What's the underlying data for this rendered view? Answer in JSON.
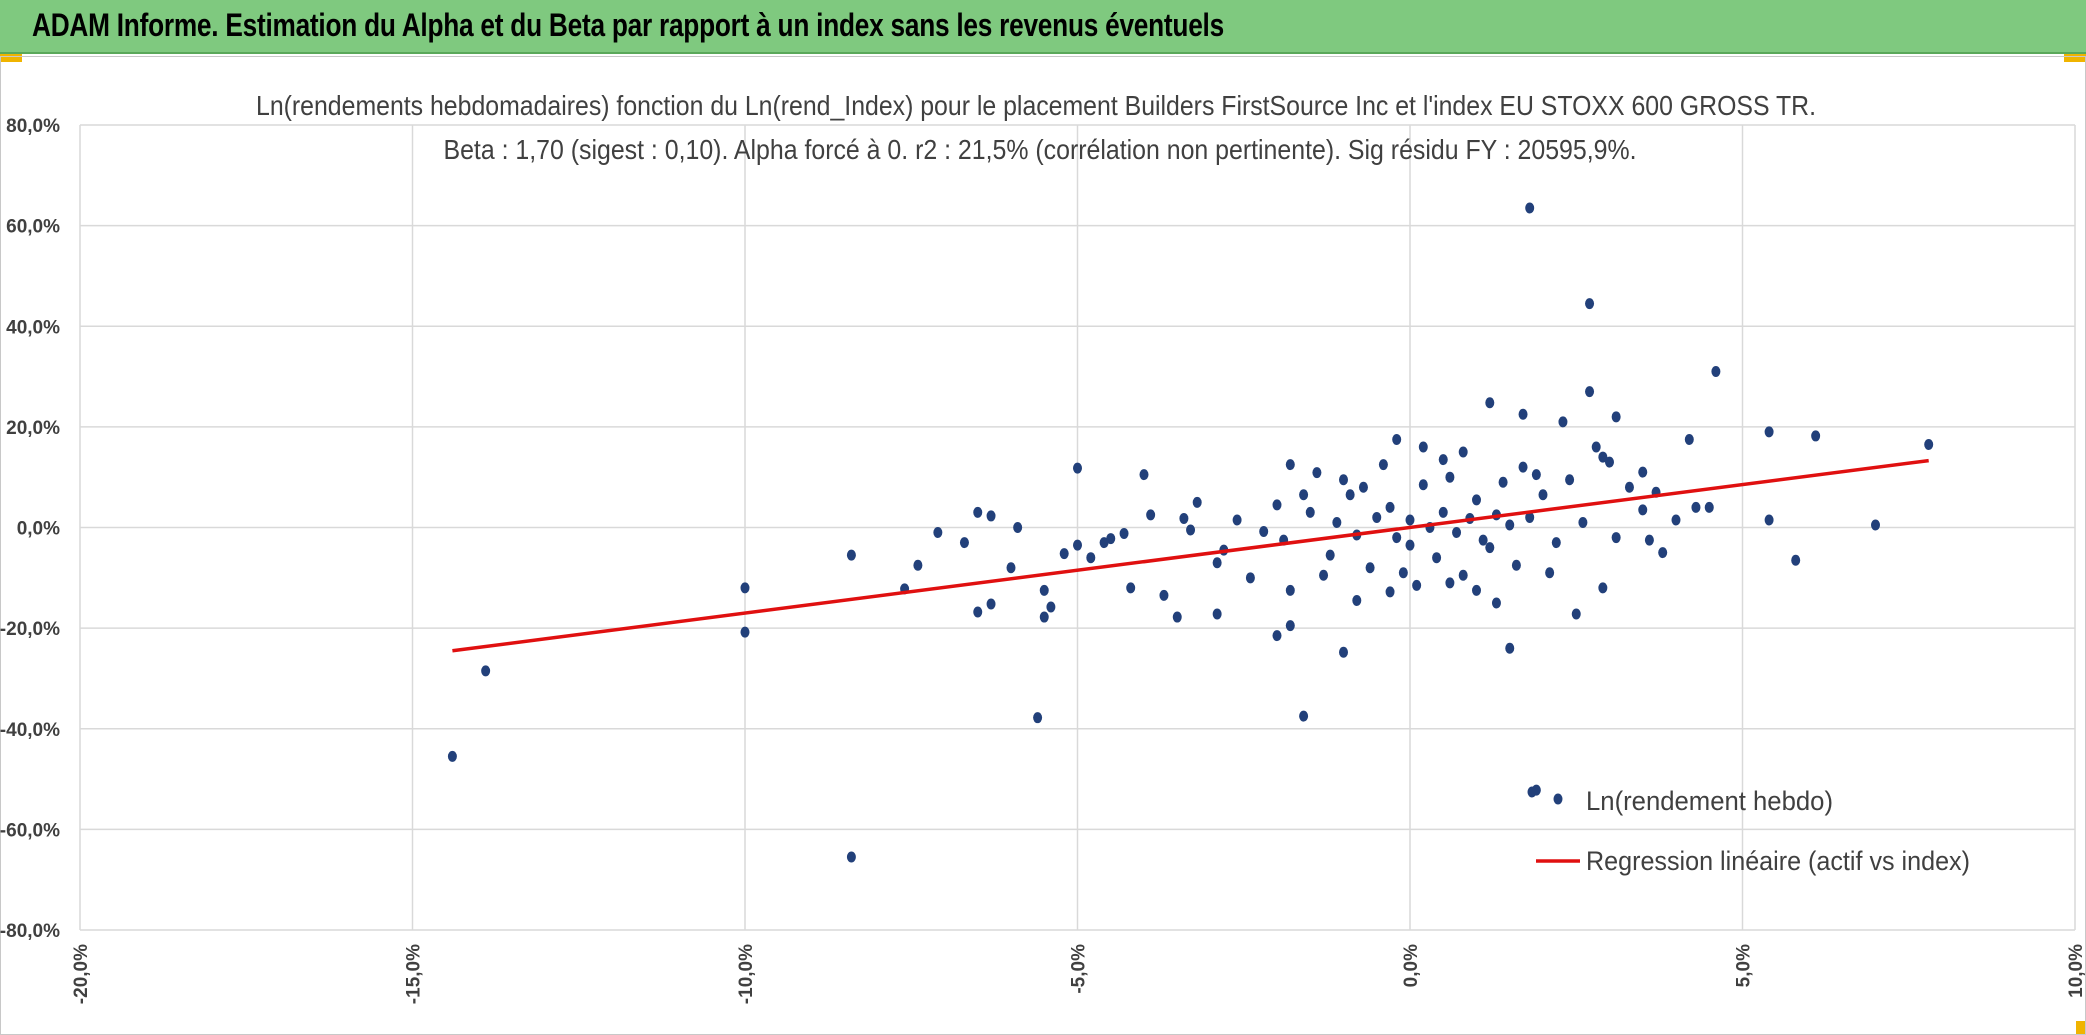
{
  "header": {
    "title": "ADAM Informe. Estimation du Alpha et du Beta par rapport à un index sans les revenus éventuels"
  },
  "colors": {
    "banner": "#7fc97f",
    "points": "#22407a",
    "regression": "#e01010",
    "grid": "#d9d9d9"
  },
  "chart_data": {
    "type": "scatter",
    "title_line1": "Ln(rendements hebdomadaires) fonction du Ln(rend_Index) pour le placement Builders FirstSource Inc et l'index EU STOXX 600 GROSS TR.",
    "title_line2": "Beta : 1,70 (sigest : 0,10). Alpha forcé à 0. r2 : 21,5% (corrélation non pertinente). Sig résidu FY : 20595,9%.",
    "xlim": [
      -20,
      10
    ],
    "ylim": [
      -80,
      80
    ],
    "x_ticks": [
      "-20,0%",
      "-15,0%",
      "-10,0%",
      "-5,0%",
      "0,0%",
      "5,0%",
      "10,0%"
    ],
    "y_ticks": [
      "80,0%",
      "60,0%",
      "40,0%",
      "20,0%",
      "0,0%",
      "-20,0%",
      "-40,0%",
      "-60,0%",
      "-80,0%"
    ],
    "grid": true,
    "legend_position": "bottom-right",
    "series": [
      {
        "name": "Ln(rendement hebdo)",
        "kind": "scatter",
        "points": [
          [
            -14.4,
            -45.5
          ],
          [
            -13.9,
            -28.5
          ],
          [
            -10.0,
            -12.0
          ],
          [
            -10.0,
            -20.8
          ],
          [
            -8.4,
            -5.5
          ],
          [
            -8.4,
            -65.5
          ],
          [
            -7.6,
            -12.2
          ],
          [
            -7.4,
            -7.5
          ],
          [
            -6.5,
            3.0
          ],
          [
            -6.5,
            -16.8
          ],
          [
            -6.3,
            2.3
          ],
          [
            -6.3,
            -15.2
          ],
          [
            -5.9,
            0.0
          ],
          [
            -5.0,
            11.8
          ],
          [
            -5.2,
            -5.2
          ],
          [
            -5.5,
            -12.5
          ],
          [
            -5.5,
            -17.8
          ],
          [
            -5.6,
            -37.8
          ],
          [
            -5.4,
            -15.8
          ],
          [
            -4.5,
            -2.2
          ],
          [
            -4.0,
            10.5
          ],
          [
            -3.5,
            -17.8
          ],
          [
            -2.9,
            -17.2
          ],
          [
            -2.0,
            -21.5
          ],
          [
            -1.8,
            -19.5
          ],
          [
            -1.6,
            -37.5
          ],
          [
            -1.0,
            -24.8
          ],
          [
            -1.4,
            10.9
          ],
          [
            -1.8,
            12.5
          ],
          [
            -0.2,
            17.5
          ],
          [
            1.2,
            24.8
          ],
          [
            1.7,
            22.5
          ],
          [
            2.3,
            21.0
          ],
          [
            1.8,
            63.5
          ],
          [
            2.7,
            44.5
          ],
          [
            2.7,
            27.0
          ],
          [
            3.1,
            22.0
          ],
          [
            4.6,
            31.0
          ],
          [
            5.4,
            19.0
          ],
          [
            6.1,
            18.2
          ],
          [
            7.8,
            16.5
          ],
          [
            7.0,
            0.5
          ],
          [
            5.8,
            -6.5
          ],
          [
            5.4,
            1.5
          ],
          [
            4.5,
            4.0
          ],
          [
            4.2,
            17.5
          ],
          [
            3.7,
            7.0
          ],
          [
            1.9,
            -52.2
          ],
          [
            1.5,
            -24.0
          ],
          [
            2.5,
            -17.2
          ],
          [
            1.3,
            -15.0
          ],
          [
            0.1,
            -11.5
          ],
          [
            -0.8,
            -14.5
          ],
          [
            -1.8,
            -12.5
          ],
          [
            -2.9,
            -7.0
          ],
          [
            -3.7,
            -13.5
          ],
          [
            -4.2,
            -12.0
          ],
          [
            -4.8,
            -6.0
          ],
          [
            -5.0,
            -3.5
          ],
          [
            -4.3,
            -1.2
          ],
          [
            -3.9,
            2.5
          ],
          [
            -3.3,
            -0.5
          ],
          [
            -2.6,
            1.5
          ],
          [
            -2.2,
            -0.8
          ],
          [
            -1.9,
            -2.5
          ],
          [
            -1.5,
            3.0
          ],
          [
            -1.2,
            -5.5
          ],
          [
            -0.9,
            6.5
          ],
          [
            -0.6,
            -8.0
          ],
          [
            -0.3,
            4.0
          ],
          [
            0.0,
            -3.5
          ],
          [
            0.2,
            8.5
          ],
          [
            0.4,
            -6.0
          ],
          [
            0.6,
            10.0
          ],
          [
            0.8,
            -9.5
          ],
          [
            1.0,
            5.5
          ],
          [
            1.2,
            -4.0
          ],
          [
            1.4,
            9.0
          ],
          [
            1.6,
            -7.5
          ],
          [
            1.8,
            2.0
          ],
          [
            2.0,
            6.5
          ],
          [
            2.2,
            -3.0
          ],
          [
            2.4,
            9.5
          ],
          [
            2.6,
            1.0
          ],
          [
            2.9,
            14.0
          ],
          [
            3.1,
            -2.0
          ],
          [
            3.3,
            8.0
          ],
          [
            3.5,
            3.5
          ],
          [
            3.8,
            -5.0
          ],
          [
            4.0,
            1.5
          ],
          [
            -1.1,
            1.0
          ],
          [
            -0.8,
            -1.5
          ],
          [
            -0.5,
            2.0
          ],
          [
            -0.2,
            -2.0
          ],
          [
            0.0,
            1.5
          ],
          [
            0.3,
            0.0
          ],
          [
            0.5,
            3.0
          ],
          [
            0.7,
            -1.0
          ],
          [
            0.9,
            1.8
          ],
          [
            1.1,
            -2.5
          ],
          [
            1.3,
            2.5
          ],
          [
            1.5,
            0.5
          ],
          [
            -0.4,
            12.5
          ],
          [
            0.5,
            13.5
          ],
          [
            1.0,
            -12.5
          ],
          [
            -0.1,
            -9.0
          ],
          [
            2.9,
            -12.0
          ],
          [
            -2.4,
            -10.0
          ],
          [
            -3.4,
            1.8
          ],
          [
            -4.6,
            -3.0
          ],
          [
            -1.6,
            6.5
          ],
          [
            -2.8,
            -4.5
          ],
          [
            3.5,
            11.0
          ],
          [
            2.8,
            16.0
          ],
          [
            0.8,
            15.0
          ],
          [
            -0.7,
            8.0
          ],
          [
            1.9,
            10.5
          ],
          [
            3.0,
            13.0
          ],
          [
            4.3,
            4.0
          ],
          [
            3.6,
            -2.5
          ],
          [
            -6.7,
            -3.0
          ],
          [
            -7.1,
            -1.0
          ],
          [
            -6.0,
            -8.0
          ],
          [
            -3.2,
            5.0
          ],
          [
            -2.0,
            4.5
          ],
          [
            -1.3,
            -9.5
          ],
          [
            -0.3,
            -12.8
          ],
          [
            0.6,
            -11.0
          ],
          [
            2.1,
            -9.0
          ],
          [
            1.7,
            12.0
          ],
          [
            0.2,
            16.0
          ],
          [
            -1.0,
            9.5
          ]
        ]
      },
      {
        "name": "Regression linéaire (actif vs index)",
        "kind": "line",
        "points": [
          [
            -14.4,
            -24.5
          ],
          [
            7.8,
            13.3
          ]
        ]
      }
    ]
  }
}
